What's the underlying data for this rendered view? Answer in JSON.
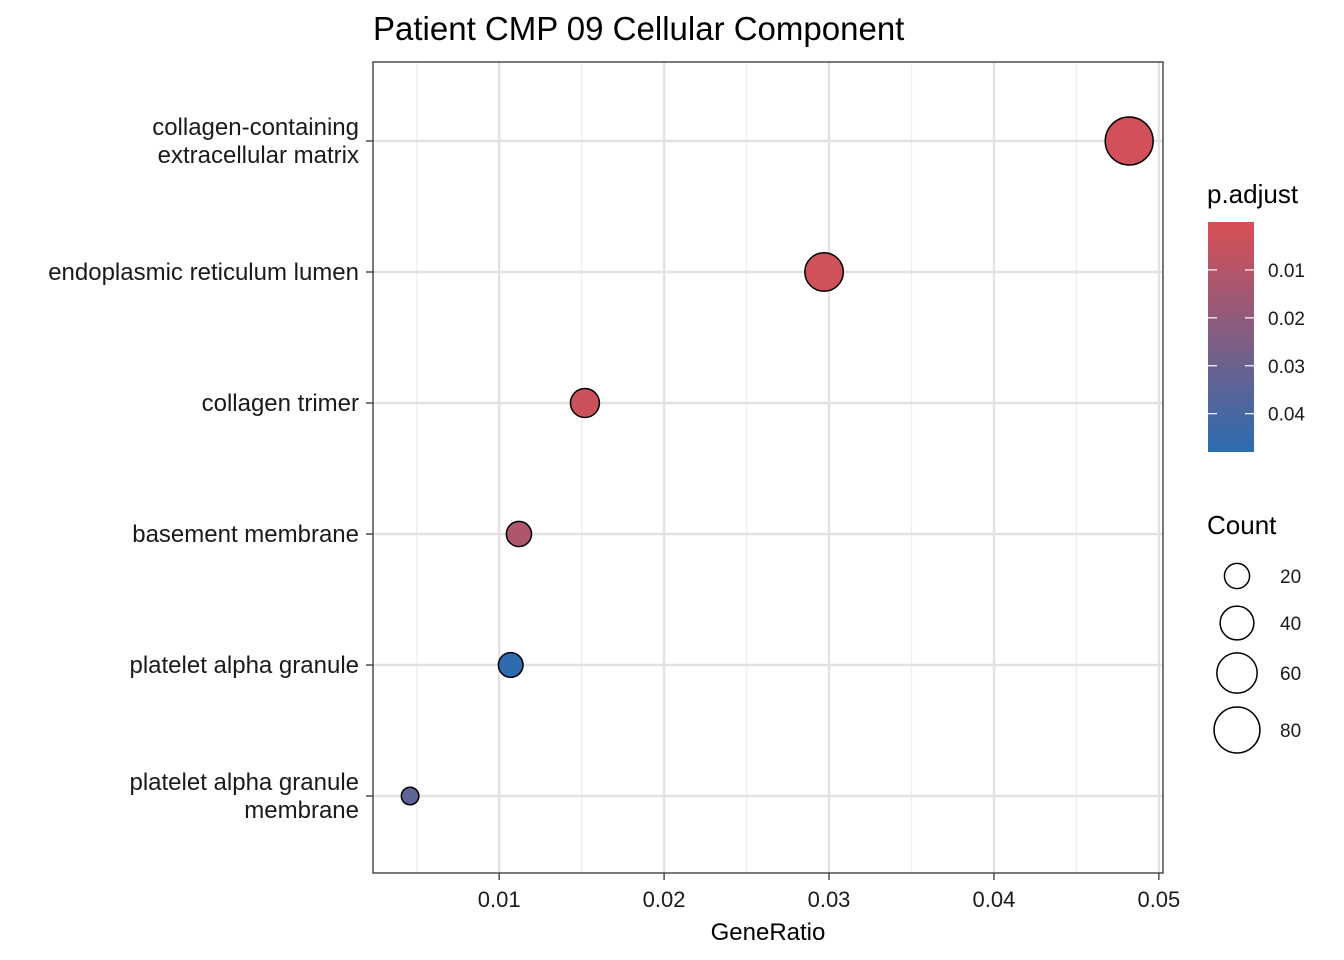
{
  "chart_data": {
    "type": "scatter",
    "title": "Patient CMP 09 Cellular Component",
    "xlabel": "GeneRatio",
    "ylabel": "",
    "xlim": [
      0.00235,
      0.05025
    ],
    "x_ticks": [
      "0.01",
      "0.02",
      "0.03",
      "0.04",
      "0.05"
    ],
    "x_tick_values": [
      0.01,
      0.02,
      0.03,
      0.04,
      0.05
    ],
    "grid": true,
    "categories": [
      [
        "collagen-containing",
        "extracellular matrix"
      ],
      [
        "endoplasmic reticulum lumen"
      ],
      [
        "collagen trimer"
      ],
      [
        "basement membrane"
      ],
      [
        "platelet alpha granule"
      ],
      [
        "platelet alpha granule",
        "membrane"
      ]
    ],
    "points": [
      {
        "x": 0.0482,
        "count": 88,
        "p_adjust": 0.002
      },
      {
        "x": 0.0297,
        "count": 54,
        "p_adjust": 0.003
      },
      {
        "x": 0.0152,
        "count": 28,
        "p_adjust": 0.004
      },
      {
        "x": 0.0112,
        "count": 20,
        "p_adjust": 0.012
      },
      {
        "x": 0.0107,
        "count": 19,
        "p_adjust": 0.047
      },
      {
        "x": 0.0046,
        "count": 8,
        "p_adjust": 0.034
      }
    ],
    "color_legend": {
      "title": "p.adjust",
      "ticks": [
        "0.01",
        "0.02",
        "0.03",
        "0.04"
      ],
      "tick_values": [
        0.01,
        0.02,
        0.03,
        0.04
      ],
      "range": [
        0.0,
        0.048
      ],
      "low_color": "#d94f55",
      "high_color": "#2b6cb0",
      "placement": "right"
    },
    "size_legend": {
      "title": "Count",
      "labels": [
        "20",
        "40",
        "60",
        "80"
      ],
      "values": [
        20,
        40,
        60,
        80
      ],
      "placement": "right"
    }
  }
}
